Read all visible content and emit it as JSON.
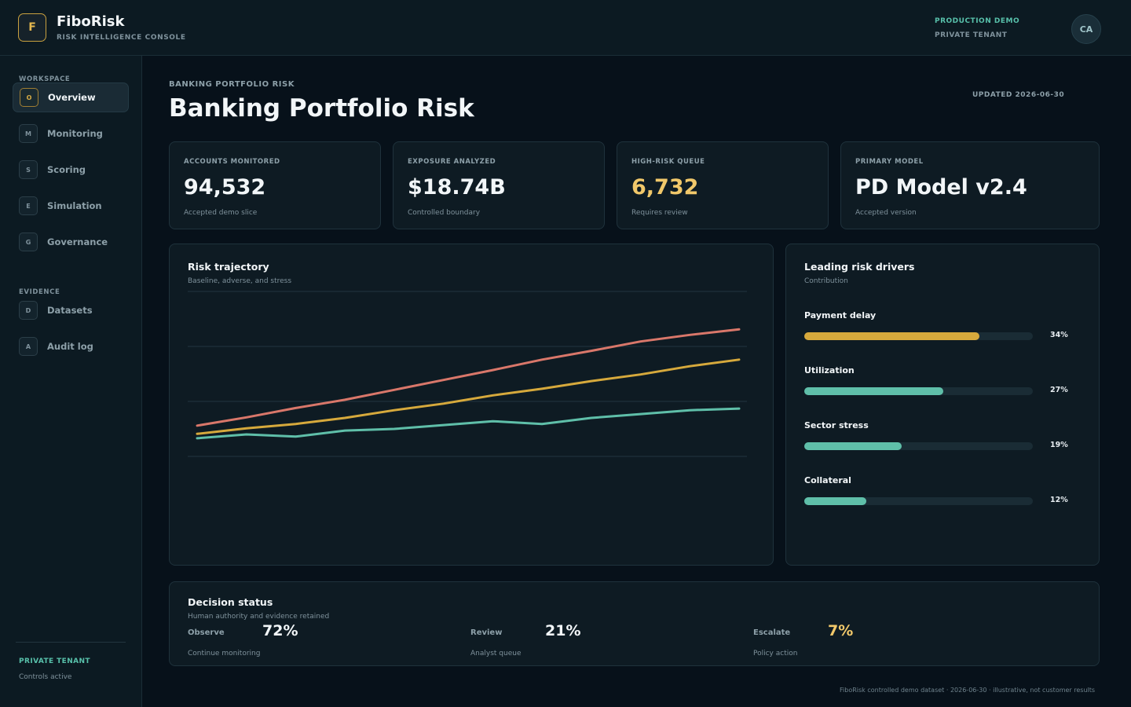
{
  "header": {
    "logo_letter": "F",
    "brand_name": "FiboRisk",
    "brand_sub": "RISK INTELLIGENCE CONSOLE",
    "env": "PRODUCTION DEMO",
    "tenant": "PRIVATE TENANT",
    "avatar": "CA"
  },
  "sidebar": {
    "workspace_label": "WORKSPACE",
    "workspace_items": [
      {
        "icon": "O",
        "label": "Overview",
        "active": true
      },
      {
        "icon": "M",
        "label": "Monitoring"
      },
      {
        "icon": "S",
        "label": "Scoring"
      },
      {
        "icon": "E",
        "label": "Simulation"
      },
      {
        "icon": "G",
        "label": "Governance"
      }
    ],
    "evidence_label": "EVIDENCE",
    "evidence_items": [
      {
        "icon": "D",
        "label": "Datasets"
      },
      {
        "icon": "A",
        "label": "Audit log"
      }
    ],
    "footer_tenant": "PRIVATE TENANT",
    "footer_status": "Controls active"
  },
  "page": {
    "breadcrumb": "BANKING PORTFOLIO RISK",
    "title": "Banking Portfolio Risk",
    "updated": "UPDATED 2026-06-30"
  },
  "kpis": [
    {
      "label": "ACCOUNTS MONITORED",
      "value": "94,532",
      "note": "Accepted demo slice"
    },
    {
      "label": "EXPOSURE ANALYZED",
      "value": "$18.74B",
      "note": "Controlled boundary"
    },
    {
      "label": "HIGH-RISK QUEUE",
      "value": "6,732",
      "note": "Requires review",
      "warn": true
    },
    {
      "label": "PRIMARY MODEL",
      "value": "PD Model v2.4",
      "note": "Accepted version"
    }
  ],
  "trajectory": {
    "title": "Risk trajectory",
    "subtitle": "Baseline, adverse, and stress"
  },
  "chart_data": {
    "type": "line",
    "title": "Risk trajectory",
    "subtitle": "Baseline, adverse, and stress",
    "x": [
      1,
      2,
      3,
      4,
      5,
      6,
      7,
      8,
      9,
      10,
      11,
      12
    ],
    "ylim": [
      0,
      4
    ],
    "grid": true,
    "series": [
      {
        "color": "#d9776a",
        "values": [
          1.56,
          1.71,
          1.88,
          2.03,
          2.21,
          2.39,
          2.57,
          2.76,
          2.92,
          3.09,
          3.21,
          3.31
        ]
      },
      {
        "color": "#d6a93c",
        "values": [
          1.41,
          1.51,
          1.59,
          1.7,
          1.84,
          1.96,
          2.11,
          2.23,
          2.37,
          2.49,
          2.64,
          2.76
        ]
      },
      {
        "color": "#5fbfa9",
        "values": [
          1.33,
          1.4,
          1.36,
          1.47,
          1.5,
          1.57,
          1.64,
          1.59,
          1.7,
          1.77,
          1.84,
          1.87
        ]
      }
    ]
  },
  "drivers": {
    "title": "Leading risk drivers",
    "subtitle": "Contribution",
    "items": [
      {
        "label": "Payment delay",
        "pct": "34%",
        "fill": 0.765,
        "color": "#d6a93c"
      },
      {
        "label": "Utilization",
        "pct": "27%",
        "fill": 0.607,
        "color": "#5fbfa9"
      },
      {
        "label": "Sector stress",
        "pct": "19%",
        "fill": 0.427,
        "color": "#5fbfa9"
      },
      {
        "label": "Collateral",
        "pct": "12%",
        "fill": 0.272,
        "color": "#5fbfa9"
      }
    ]
  },
  "decision": {
    "title": "Decision status",
    "subtitle": "Human authority and evidence retained",
    "items": [
      {
        "label": "Observe",
        "value": "72%",
        "note": "Continue monitoring"
      },
      {
        "label": "Review",
        "value": "21%",
        "note": "Analyst queue"
      },
      {
        "label": "Escalate",
        "value": "7%",
        "note": "Policy action",
        "warn": true
      }
    ]
  },
  "footer": "FiboRisk controlled demo dataset · 2026-06-30 · illustrative, not customer results"
}
